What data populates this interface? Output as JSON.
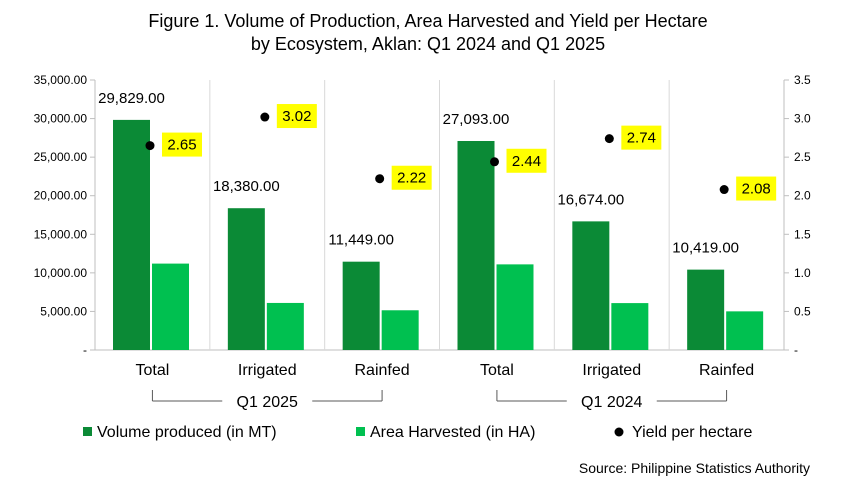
{
  "chart_data": {
    "type": "bar",
    "title_line1": "Figure 1. Volume of Production, Area Harvested and Yield per Hectare",
    "title_line2": "by Ecosystem, Aklan: Q1 2024 and Q1 2025",
    "categories": [
      "Total",
      "Irrigated",
      "Rainfed",
      "Total",
      "Irrigated",
      "Rainfed"
    ],
    "groups": [
      {
        "label": "Q1 2025",
        "categories": [
          0,
          1,
          2
        ]
      },
      {
        "label": "Q1 2024",
        "categories": [
          3,
          4,
          5
        ]
      }
    ],
    "series": [
      {
        "name": "Volume produced (in MT)",
        "type": "bar",
        "axis": "left",
        "color": "#0b8a36",
        "values": [
          29829,
          18380,
          11449,
          27093,
          16674,
          10419
        ],
        "labels": [
          "29,829.00",
          "18,380.00",
          "11,449.00",
          "27,093.00",
          "16,674.00",
          "10,419.00"
        ]
      },
      {
        "name": "Area Harvested (in HA)",
        "type": "bar",
        "axis": "left",
        "color": "#00c050",
        "values": [
          11200,
          6100,
          5150,
          11100,
          6080,
          5010
        ]
      },
      {
        "name": "Yield per hectare",
        "type": "scatter",
        "axis": "right",
        "color": "#000000",
        "values": [
          2.65,
          3.02,
          2.22,
          2.44,
          2.74,
          2.08
        ],
        "labels": [
          "2.65",
          "3.02",
          "2.22",
          "2.44",
          "2.74",
          "2.08"
        ],
        "label_bg": "#ffff00"
      }
    ],
    "left_axis": {
      "min": 0,
      "max": 35000,
      "ticks": [
        {
          "value": 0,
          "label": "-"
        },
        {
          "value": 5000,
          "label": "5,000.00"
        },
        {
          "value": 10000,
          "label": "10,000.00"
        },
        {
          "value": 15000,
          "label": "15,000.00"
        },
        {
          "value": 20000,
          "label": "20,000.00"
        },
        {
          "value": 25000,
          "label": "25,000.00"
        },
        {
          "value": 30000,
          "label": "30,000.00"
        },
        {
          "value": 35000,
          "label": "35,000.00"
        }
      ]
    },
    "right_axis": {
      "min": 0,
      "max": 3.5,
      "ticks": [
        {
          "value": 0,
          "label": "-"
        },
        {
          "value": 0.5,
          "label": "0.5"
        },
        {
          "value": 1.0,
          "label": "1.0"
        },
        {
          "value": 1.5,
          "label": "1.5"
        },
        {
          "value": 2.0,
          "label": "2.0"
        },
        {
          "value": 2.5,
          "label": "2.5"
        },
        {
          "value": 3.0,
          "label": "3.0"
        },
        {
          "value": 3.5,
          "label": "3.5"
        }
      ]
    },
    "grid": false,
    "legend_position": "bottom",
    "source": "Source: Philippine Statistics Authority"
  }
}
